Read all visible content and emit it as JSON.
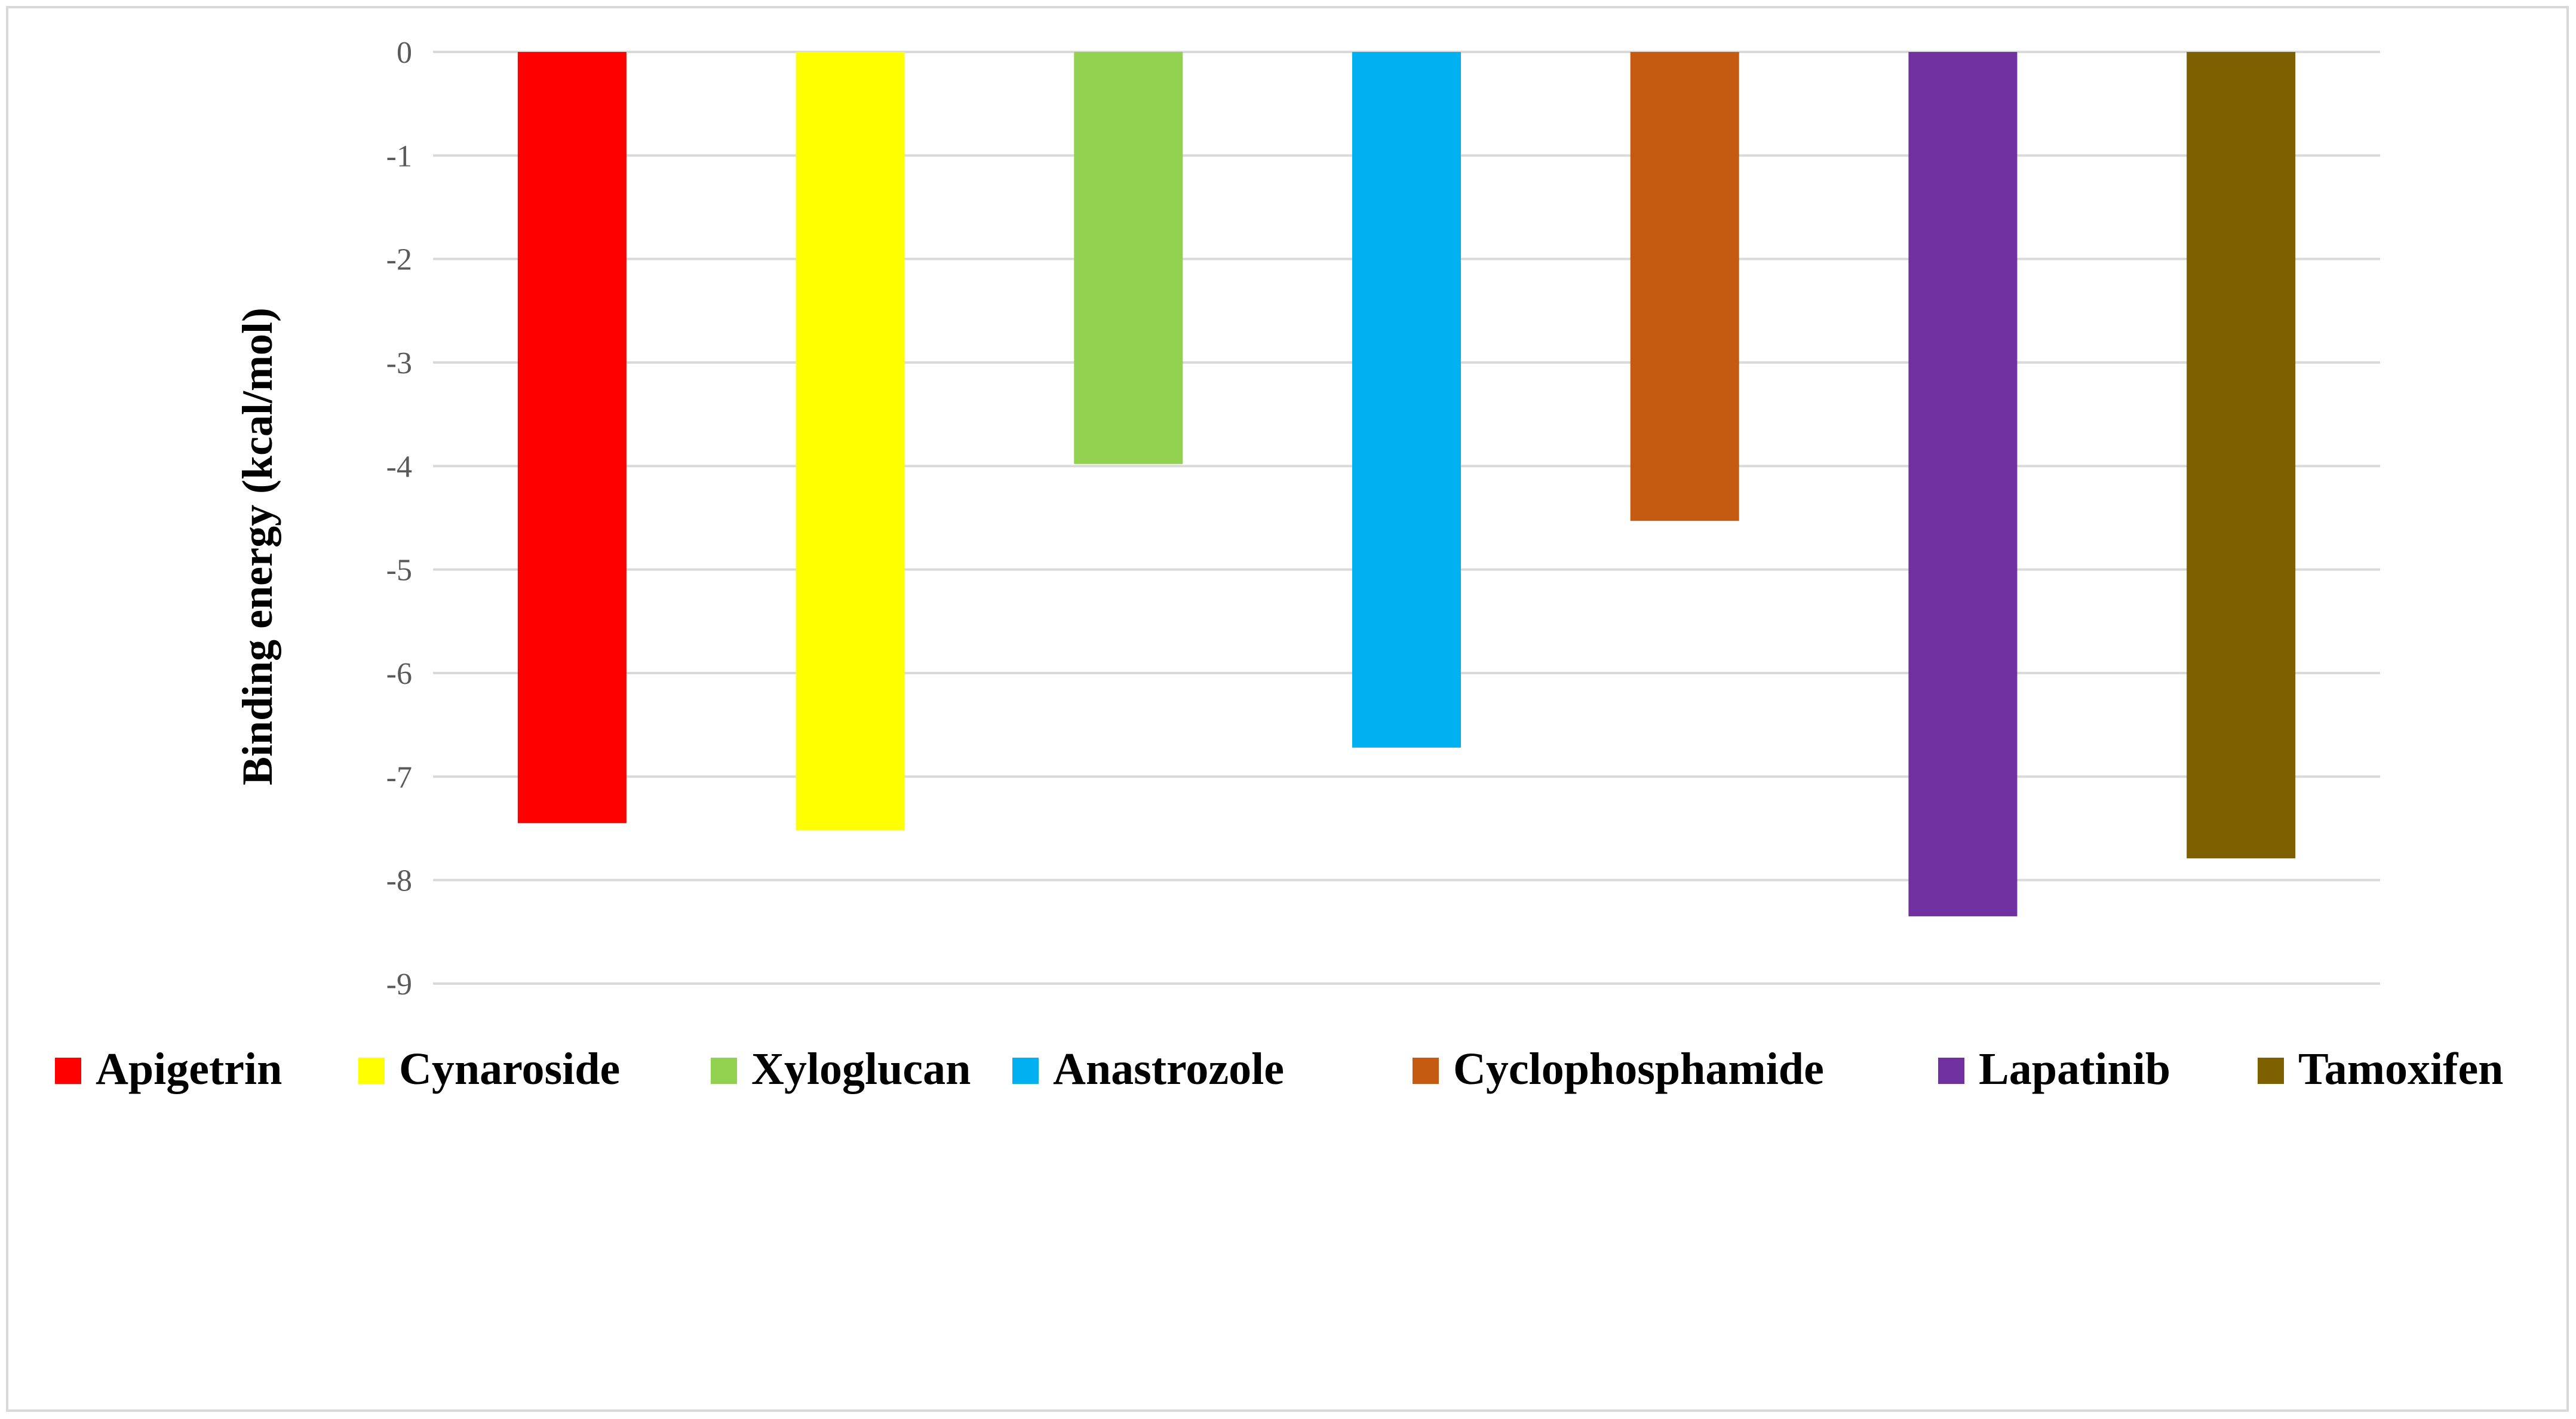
{
  "chart_data": {
    "type": "bar",
    "title": "",
    "xlabel": "",
    "ylabel": "Binding energy (kcal/mol)",
    "ylim": [
      -9,
      0
    ],
    "yticks": [
      0,
      -1,
      -2,
      -3,
      -4,
      -5,
      -6,
      -7,
      -8,
      -9
    ],
    "grid": true,
    "legend_position": "bottom",
    "categories": [
      "Apigetrin",
      "Cynaroside",
      "Xyloglucan",
      "Anastrozole",
      "Cyclophosphamide",
      "Lapatinib",
      "Tamoxifen"
    ],
    "series": [
      {
        "name": "Apigetrin",
        "value": -7.45,
        "color": "#ff0000"
      },
      {
        "name": "Cynaroside",
        "value": -7.52,
        "color": "#ffff00"
      },
      {
        "name": "Xyloglucan",
        "value": -3.98,
        "color": "#92d050"
      },
      {
        "name": "Anastrozole",
        "value": -6.72,
        "color": "#00b0f0"
      },
      {
        "name": "Cyclophosphamide",
        "value": -4.53,
        "color": "#c55a11"
      },
      {
        "name": "Lapatinib",
        "value": -8.35,
        "color": "#7030a0"
      },
      {
        "name": "Tamoxifen",
        "value": -7.79,
        "color": "#7f6000"
      }
    ]
  }
}
